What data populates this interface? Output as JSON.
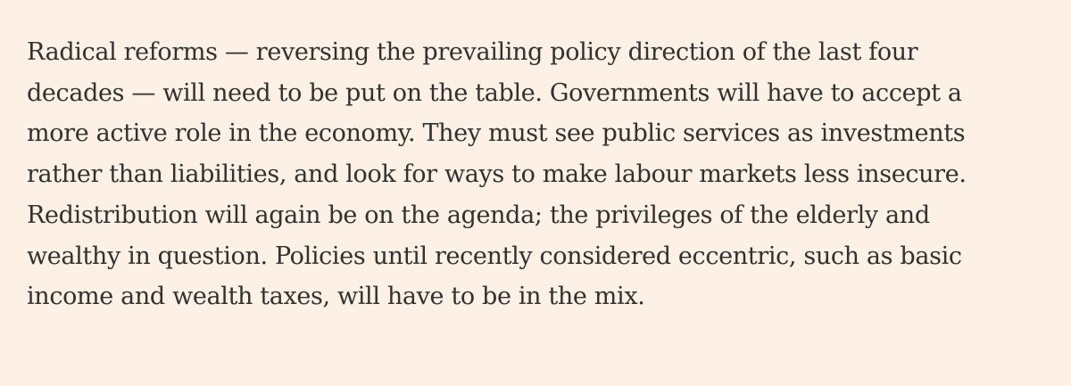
{
  "article": {
    "paragraph_lines": [
      "Radical reforms — reversing the prevailing policy direction of the last four",
      "decades — will need to be put on the table. Governments will have to accept a",
      "more active role in the economy. They must see public services as investments",
      "rather than liabilities, and look for ways to make labour markets less insecure.",
      "Redistribution will again be on the agenda; the privileges of the elderly and",
      "wealthy in question. Policies until recently considered eccentric, such as basic",
      "income and wealth taxes, will have to be in the mix."
    ]
  },
  "colors": {
    "background": "#fdf1e5",
    "text": "#33302e"
  }
}
